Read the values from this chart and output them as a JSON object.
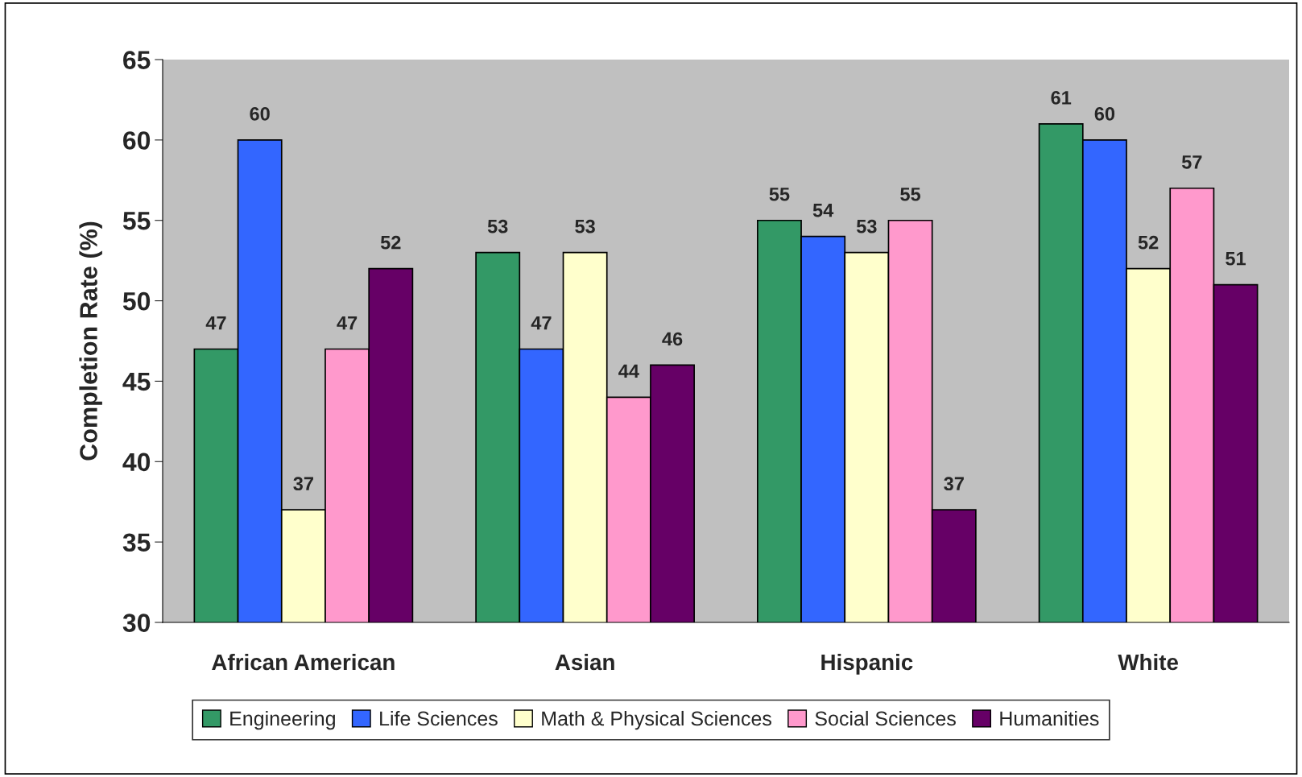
{
  "chart_data": {
    "type": "bar",
    "ylabel": "Completion Rate (%)",
    "categories": [
      "African American",
      "Asian",
      "Hispanic",
      "White"
    ],
    "series": [
      {
        "name": "Engineering",
        "color": "#339966",
        "values": [
          47,
          53,
          55,
          61
        ]
      },
      {
        "name": "Life Sciences",
        "color": "#3366ff",
        "values": [
          60,
          47,
          54,
          60
        ]
      },
      {
        "name": "Math & Physical Sciences",
        "color": "#ffffcc",
        "values": [
          37,
          53,
          53,
          52
        ]
      },
      {
        "name": "Social Sciences",
        "color": "#ff99cc",
        "values": [
          47,
          44,
          55,
          57
        ]
      },
      {
        "name": "Humanities",
        "color": "#660066",
        "values": [
          52,
          46,
          37,
          51
        ]
      }
    ],
    "ylim": [
      30,
      65
    ],
    "yticks": [
      30,
      35,
      40,
      45,
      50,
      55,
      60,
      65
    ],
    "data_labels": true,
    "legend": "bottom",
    "grid": false
  }
}
